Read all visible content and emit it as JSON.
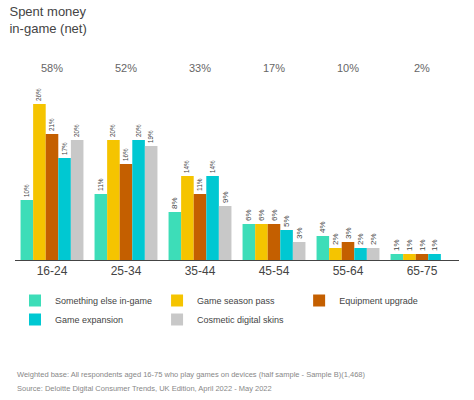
{
  "chart_data": {
    "type": "bar",
    "title": "Spent money\nin-game (net)",
    "categories": [
      "16-24",
      "25-34",
      "35-44",
      "45-54",
      "55-64",
      "65-75"
    ],
    "series": [
      {
        "name": "Something else in-game",
        "color": "#3dddb8",
        "values": [
          10,
          11,
          8,
          6,
          4,
          1
        ],
        "value_labels": [
          "10%",
          "11%",
          "8%",
          "6%",
          "4%",
          "1%"
        ]
      },
      {
        "name": "Game season pass",
        "color": "#f5c400",
        "values": [
          26,
          20,
          14,
          6,
          2,
          1
        ],
        "value_labels": [
          "26%",
          "20%",
          "14%",
          "6%",
          "2%",
          "1%"
        ]
      },
      {
        "name": "Equipment upgrade",
        "color": "#c45f00",
        "values": [
          21,
          16,
          11,
          6,
          3,
          1
        ],
        "value_labels": [
          "21%",
          "16%",
          "11%",
          "6%",
          "3%",
          "1%"
        ]
      },
      {
        "name": "Game expansion",
        "color": "#00c8d2",
        "values": [
          17,
          20,
          14,
          5,
          2,
          1
        ],
        "value_labels": [
          "17%",
          "20%",
          "14%",
          "5%",
          "2%",
          "1%"
        ]
      },
      {
        "name": "Cosmetic digital skins",
        "color": "#c8c8c8",
        "values": [
          20,
          19,
          9,
          3,
          2,
          0
        ],
        "value_labels": [
          "20%",
          "19%",
          "9%",
          "3%",
          "2%",
          null
        ]
      }
    ],
    "ylim": [
      0,
      30
    ],
    "grid": false,
    "legend": "bottom",
    "data_labels": true,
    "tick_labels": "x",
    "annotations": [
      {
        "category": "16-24",
        "text": "58%"
      },
      {
        "category": "25-34",
        "text": "52%"
      },
      {
        "category": "35-44",
        "text": "33%"
      },
      {
        "category": "45-54",
        "text": "17%"
      },
      {
        "category": "55-64",
        "text": "10%"
      },
      {
        "category": "65-75",
        "text": "2%"
      }
    ],
    "footnotes": [
      "Weighted base: All respondents aged 16-75 who play games on devices (half sample - Sample B)(1,468)",
      "Source: Deloitte Digital Consumer Trends, UK Edition, April 2022 - May 2022"
    ]
  }
}
